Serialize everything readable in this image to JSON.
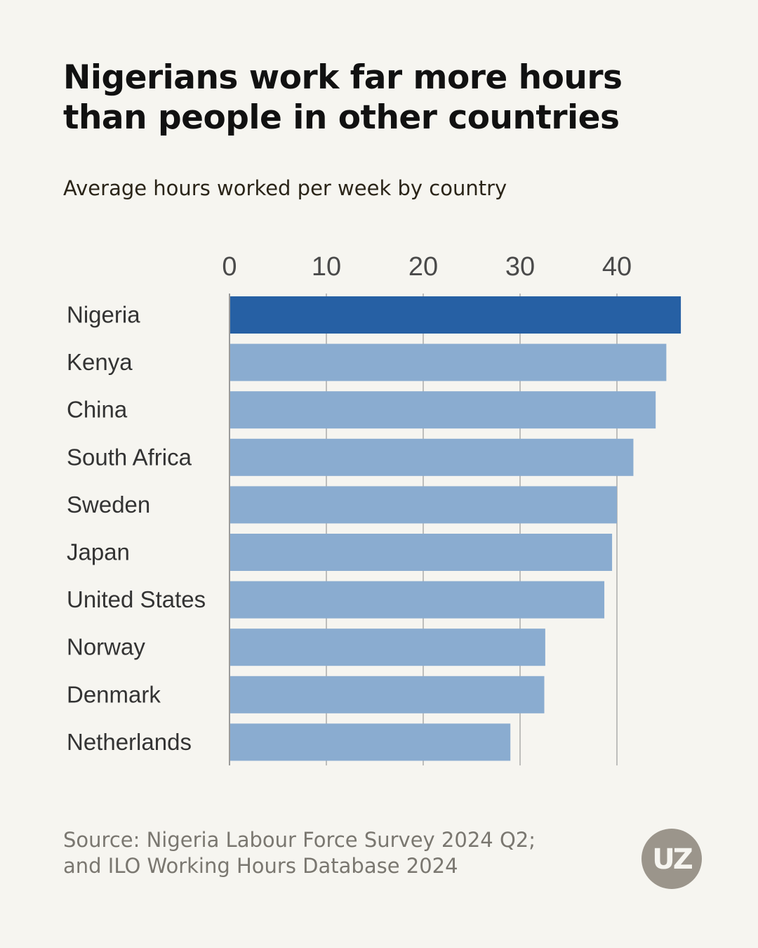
{
  "header": {
    "title": "Nigerians work far more hours than people in other countries",
    "subtitle": "Average hours worked per week by country"
  },
  "footer": {
    "source": "Source: Nigeria Labour Force Survey 2024 Q2; and ILO Working Hours Database 2024",
    "logo_text": "UZ"
  },
  "colors": {
    "background": "#f6f5f0",
    "highlight_bar": "#2660a4",
    "bar": "#8aacd0",
    "gridline": "#9a9a9a",
    "logo": "#9b958b"
  },
  "chart_data": {
    "type": "bar",
    "orientation": "horizontal",
    "title": "Nigerians work far more hours than people in other countries",
    "subtitle": "Average hours worked per week by country",
    "xlabel": "",
    "ylabel": "",
    "xlim": [
      0,
      48
    ],
    "ticks": [
      0,
      10,
      20,
      30,
      40
    ],
    "grid": true,
    "axis_position": "top",
    "highlight": "Nigeria",
    "categories": [
      "Nigeria",
      "Kenya",
      "China",
      "South Africa",
      "Sweden",
      "Japan",
      "United States",
      "Norway",
      "Denmark",
      "Netherlands"
    ],
    "values": [
      46.6,
      45.1,
      44.0,
      41.7,
      40.0,
      39.5,
      38.7,
      32.6,
      32.5,
      29.0
    ]
  }
}
